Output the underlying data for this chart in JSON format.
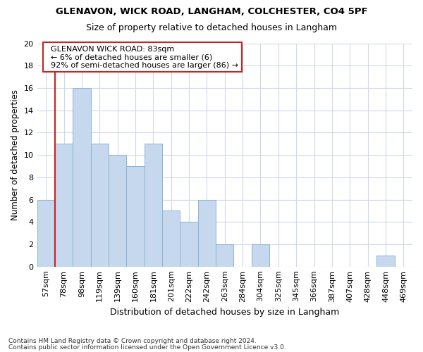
{
  "title1": "GLENAVON, WICK ROAD, LANGHAM, COLCHESTER, CO4 5PF",
  "title2": "Size of property relative to detached houses in Langham",
  "xlabel": "Distribution of detached houses by size in Langham",
  "ylabel": "Number of detached properties",
  "categories": [
    "57sqm",
    "78sqm",
    "98sqm",
    "119sqm",
    "139sqm",
    "160sqm",
    "181sqm",
    "201sqm",
    "222sqm",
    "242sqm",
    "263sqm",
    "284sqm",
    "304sqm",
    "325sqm",
    "345sqm",
    "366sqm",
    "387sqm",
    "407sqm",
    "428sqm",
    "448sqm",
    "469sqm"
  ],
  "values": [
    6,
    11,
    16,
    11,
    10,
    9,
    11,
    5,
    4,
    6,
    2,
    0,
    2,
    0,
    0,
    0,
    0,
    0,
    0,
    1,
    0
  ],
  "bar_color": "#c5d8ee",
  "bar_edge_color": "#90b4d4",
  "vline_color": "#cc2222",
  "vline_x_index": 1,
  "annotation_text": "  GLENAVON WICK ROAD: 83sqm\n  ← 6% of detached houses are smaller (6)\n  92% of semi-detached houses are larger (86) →",
  "annotation_box_facecolor": "#ffffff",
  "annotation_box_edgecolor": "#cc2222",
  "ylim": [
    0,
    20
  ],
  "yticks": [
    0,
    2,
    4,
    6,
    8,
    10,
    12,
    14,
    16,
    18,
    20
  ],
  "footnote1": "Contains HM Land Registry data © Crown copyright and database right 2024.",
  "footnote2": "Contains public sector information licensed under the Open Government Licence v3.0.",
  "bg_color": "#ffffff",
  "plot_bg_color": "#ffffff",
  "grid_color": "#d0d8e8",
  "title1_fontsize": 9.5,
  "title2_fontsize": 9.0,
  "ylabel_fontsize": 8.5,
  "xlabel_fontsize": 9.0,
  "tick_fontsize": 8.0,
  "annot_fontsize": 8.0,
  "footnote_fontsize": 6.5
}
